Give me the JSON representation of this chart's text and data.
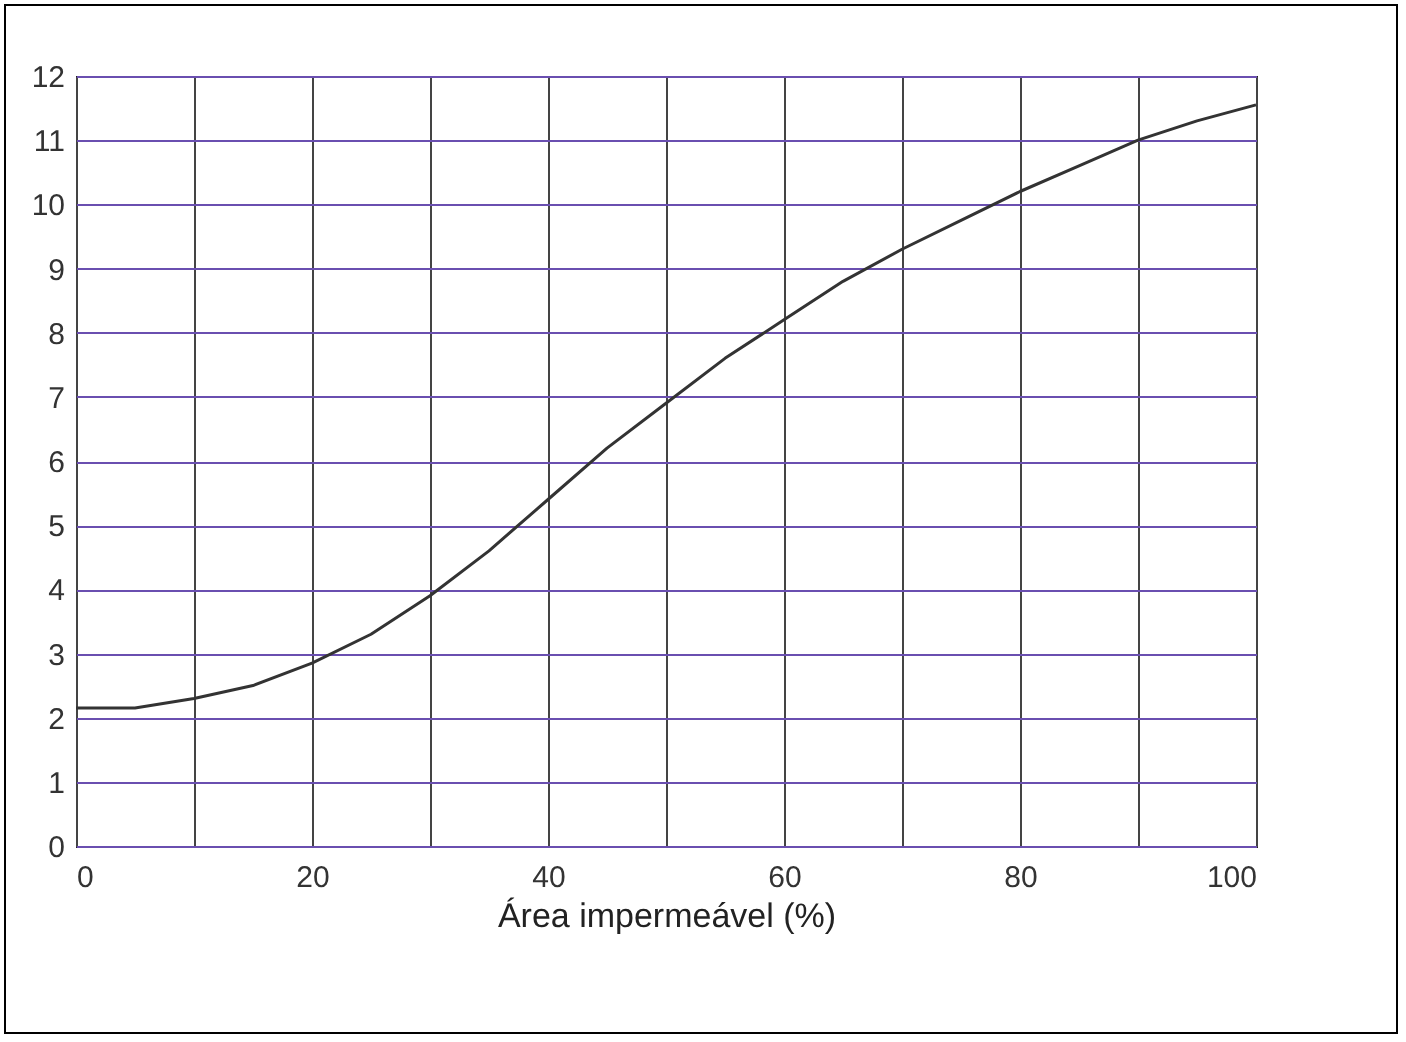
{
  "chart_data": {
    "type": "line",
    "xlabel": "Área impermeável  (%)",
    "x": [
      0,
      5,
      10,
      15,
      20,
      25,
      30,
      35,
      40,
      45,
      50,
      55,
      60,
      65,
      70,
      75,
      80,
      85,
      90,
      95,
      100
    ],
    "series": [
      {
        "color": "#333333",
        "values": [
          2.15,
          2.15,
          2.3,
          2.5,
          2.85,
          3.3,
          3.9,
          4.6,
          5.4,
          6.2,
          6.9,
          7.6,
          8.2,
          8.8,
          9.3,
          9.75,
          10.2,
          10.6,
          11.0,
          11.3,
          11.55
        ]
      }
    ],
    "xlim": [
      0,
      100
    ],
    "xticks": [
      0,
      {
        "value": 10,
        "label": null
      },
      20,
      {
        "value": 30,
        "label": null
      },
      40,
      {
        "value": 50,
        "label": null
      },
      60,
      {
        "value": 70,
        "label": null
      },
      80,
      {
        "value": 90,
        "label": null
      },
      100
    ],
    "ylim": [
      0,
      12
    ],
    "yticks": [
      0,
      1,
      2,
      3,
      4,
      5,
      6,
      7,
      8,
      9,
      10,
      11,
      12
    ],
    "grid": true,
    "marker": "none",
    "line_style": "solid"
  }
}
